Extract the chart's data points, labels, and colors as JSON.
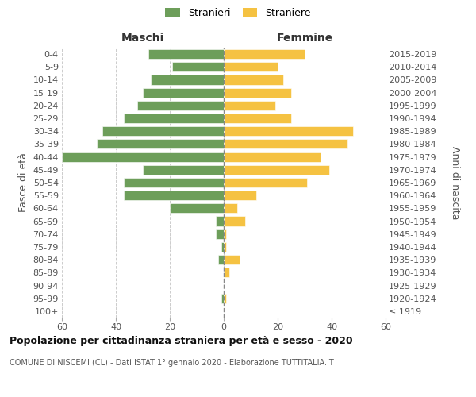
{
  "age_groups": [
    "100+",
    "95-99",
    "90-94",
    "85-89",
    "80-84",
    "75-79",
    "70-74",
    "65-69",
    "60-64",
    "55-59",
    "50-54",
    "45-49",
    "40-44",
    "35-39",
    "30-34",
    "25-29",
    "20-24",
    "15-19",
    "10-14",
    "5-9",
    "0-4"
  ],
  "birth_years": [
    "≤ 1919",
    "1920-1924",
    "1925-1929",
    "1930-1934",
    "1935-1939",
    "1940-1944",
    "1945-1949",
    "1950-1954",
    "1955-1959",
    "1960-1964",
    "1965-1969",
    "1970-1974",
    "1975-1979",
    "1980-1984",
    "1985-1989",
    "1990-1994",
    "1995-1999",
    "2000-2004",
    "2005-2009",
    "2010-2014",
    "2015-2019"
  ],
  "males": [
    0,
    1,
    0,
    0,
    2,
    1,
    3,
    3,
    20,
    37,
    37,
    30,
    60,
    47,
    45,
    37,
    32,
    30,
    27,
    19,
    28
  ],
  "females": [
    0,
    1,
    0,
    2,
    6,
    1,
    1,
    8,
    5,
    12,
    31,
    39,
    36,
    46,
    48,
    25,
    19,
    25,
    22,
    20,
    30
  ],
  "male_color": "#6d9e5a",
  "female_color": "#f5c242",
  "title": "Popolazione per cittadinanza straniera per età e sesso - 2020",
  "subtitle": "COMUNE DI NISCEMI (CL) - Dati ISTAT 1° gennaio 2020 - Elaborazione TUTTITALIA.IT",
  "xlabel_left": "Maschi",
  "xlabel_right": "Femmine",
  "ylabel_left": "Fasce di età",
  "ylabel_right": "Anni di nascita",
  "legend_male": "Stranieri",
  "legend_female": "Straniere",
  "xlim": 60,
  "background_color": "#ffffff",
  "grid_color": "#cccccc"
}
